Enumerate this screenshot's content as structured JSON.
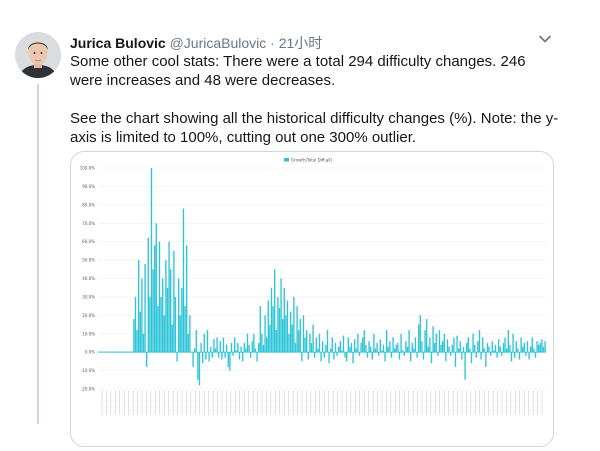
{
  "tweet": {
    "author_name": "Jurica Bulovic",
    "handle": "@JuricaBulovic",
    "separator": "·",
    "time": "21小时",
    "paragraph_1": "Some other cool stats: There were a total 294 difficulty changes. 246 were increases and 48 were decreases.",
    "paragraph_2": "See the chart showing all the historical difficulty changes (%). Note: the y-axis is limited to 100%, cutting out one 300% outlier."
  },
  "icons": {
    "avatar": "avatar",
    "menu": "chevron-down-icon"
  },
  "colors": {
    "bar": "#2ec4d8",
    "text": "#14171a",
    "muted": "#657786",
    "border": "#ccd6dd"
  },
  "chart_data": {
    "type": "bar",
    "legend": [
      "Growth(Total Diff,all)"
    ],
    "ylim": [
      -20,
      100
    ],
    "yticks": [
      "100.0%",
      "90.0%",
      "80.0%",
      "70.0%",
      "60.0%",
      "50.0%",
      "40.0%",
      "30.0%",
      "20.0%",
      "10.0%",
      "0.0%",
      "-10.0%",
      "-20.0%"
    ],
    "values": [
      0,
      0,
      0,
      0,
      0,
      0,
      0,
      0,
      0,
      0,
      0,
      0,
      0,
      0,
      0,
      0,
      0,
      0,
      0,
      0,
      0,
      0,
      18,
      30,
      12,
      50,
      22,
      40,
      10,
      48,
      -8,
      62,
      30,
      100,
      45,
      58,
      70,
      25,
      60,
      30,
      40,
      20,
      50,
      35,
      60,
      45,
      15,
      55,
      30,
      -5,
      40,
      20,
      35,
      78,
      25,
      58,
      10,
      20,
      0,
      -8,
      2,
      12,
      -15,
      -18,
      5,
      -6,
      10,
      -4,
      12,
      -5,
      3,
      -3,
      7,
      2,
      8,
      -3,
      6,
      -4,
      8,
      -3,
      4,
      -8,
      -10,
      5,
      -2,
      8,
      1,
      5,
      -4,
      3,
      -5,
      5,
      2,
      10,
      4,
      -3,
      6,
      10,
      2,
      -5,
      5,
      25,
      10,
      4,
      20,
      8,
      28,
      15,
      35,
      25,
      45,
      12,
      30,
      24,
      40,
      18,
      35,
      20,
      28,
      10,
      22,
      15,
      30,
      5,
      25,
      12,
      18,
      -5,
      20,
      8,
      12,
      -4,
      10,
      5,
      15,
      -3,
      8,
      2,
      10,
      -5,
      6,
      -3,
      4,
      12,
      -6,
      2,
      8,
      -4,
      5,
      -2,
      3,
      6,
      1,
      9,
      -3,
      -5,
      8,
      3,
      5,
      -6,
      7,
      2,
      10,
      -2,
      5,
      8,
      12,
      4,
      -3,
      6,
      3,
      -4,
      10,
      2,
      5,
      -2,
      7,
      1,
      4,
      -5,
      12,
      3,
      6,
      -3,
      8,
      2,
      4,
      5,
      -4,
      10,
      1,
      -2,
      6,
      3,
      12,
      -5,
      5,
      2,
      8,
      -3,
      15,
      20,
      6,
      -4,
      12,
      18,
      3,
      8,
      -6,
      14,
      5,
      10,
      -2,
      12,
      4,
      6,
      10,
      -5,
      7,
      3,
      -2,
      4,
      8,
      -8,
      9,
      2,
      6,
      -4,
      3,
      -15,
      5,
      8,
      2,
      -6,
      10,
      4,
      -3,
      6,
      12,
      -4,
      8,
      2,
      -8,
      5,
      3,
      -2,
      6,
      1,
      4,
      -3,
      7,
      3,
      -2,
      5,
      8,
      2,
      12,
      4,
      -5,
      10,
      -3,
      6,
      2,
      -4,
      8,
      3,
      5,
      -2,
      6,
      -4,
      3,
      8,
      2,
      -3,
      6,
      4,
      5,
      7,
      3,
      6
    ]
  }
}
